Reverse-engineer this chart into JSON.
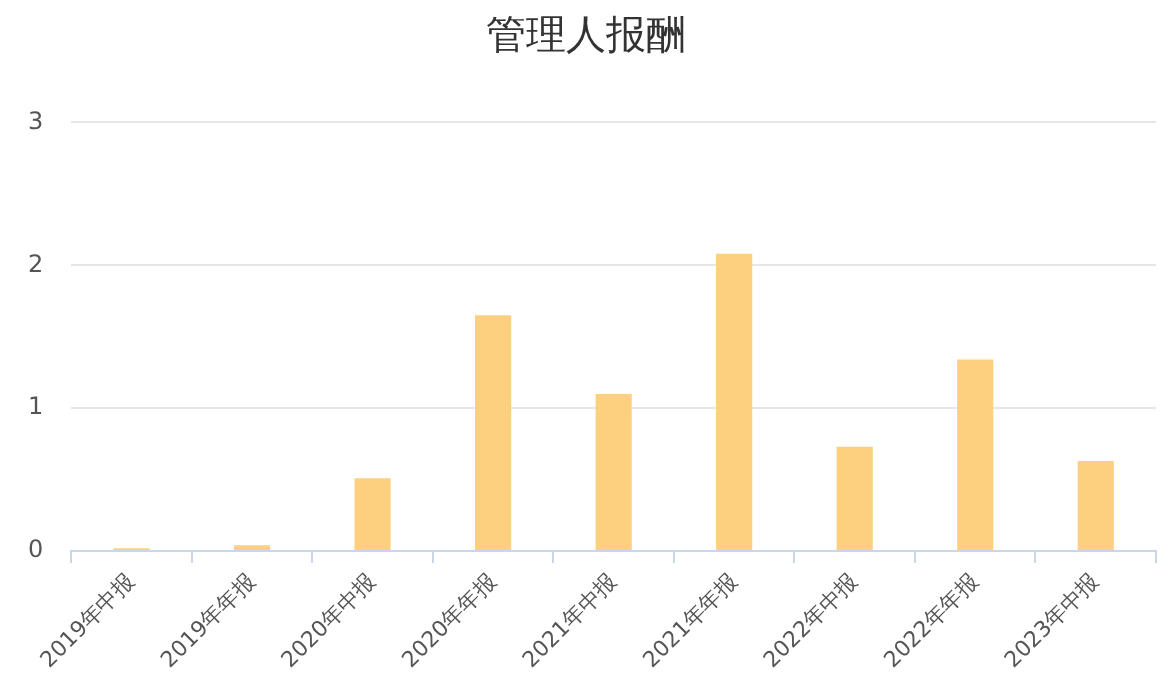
{
  "chart_data": {
    "type": "bar",
    "title": "管理人报酬",
    "categories": [
      "2019年中报",
      "2019年年报",
      "2020年中报",
      "2020年年报",
      "2021年中报",
      "2021年年报",
      "2022年中报",
      "2022年年报",
      "2023年中报"
    ],
    "values": [
      0.02,
      0.04,
      0.51,
      1.65,
      1.1,
      2.08,
      0.73,
      1.34,
      0.63
    ],
    "color": "#fdd07f",
    "ylim": [
      0,
      3
    ],
    "yticks": [
      0,
      1,
      2,
      3
    ],
    "grid": "y",
    "legend": false
  }
}
